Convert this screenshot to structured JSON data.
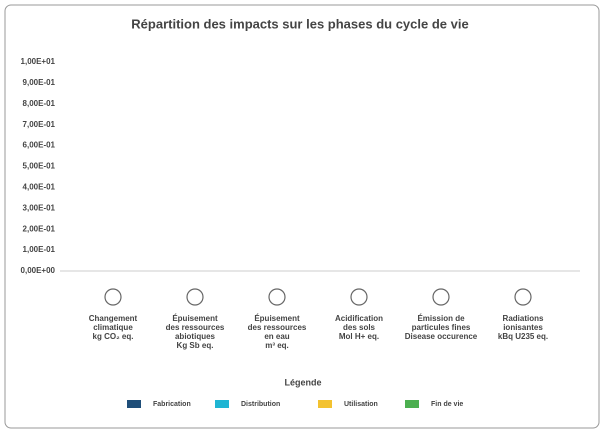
{
  "chart_data": {
    "type": "bar",
    "title": "Répartition des impacts sur les phases du cycle de vie",
    "categories": [
      "Changement\nclimatique\nkg CO₂ eq.",
      "Épuisement\ndes ressources\nabiotiques\nKg Sb eq.",
      "Épuisement\ndes ressources\nen eau\nm³ eq.",
      "Acidification\ndes sols\nMol H+ eq.",
      "Émission de\nparticules fines\nDisease occurence",
      "Radiations\nionisantes\nkBq U235 eq."
    ],
    "series": [
      {
        "name": "Fabrication",
        "color": "#1f4e79",
        "values": [
          0,
          0,
          0,
          0,
          0,
          0
        ]
      },
      {
        "name": "Distribution",
        "color": "#1fb5d3",
        "values": [
          0,
          0,
          0,
          0,
          0,
          0
        ]
      },
      {
        "name": "Utilisation",
        "color": "#f3c230",
        "values": [
          0,
          0,
          0,
          0,
          0,
          0
        ]
      },
      {
        "name": "Fin de vie",
        "color": "#4caf50",
        "values": [
          0,
          0,
          0,
          0,
          0,
          0
        ]
      }
    ],
    "ylim": [
      0,
      10
    ],
    "yticks": [
      {
        "value": 0,
        "label": "0,00E+00"
      },
      {
        "value": 0.1,
        "label": "1,00E-01"
      },
      {
        "value": 0.2,
        "label": "2,00E-01"
      },
      {
        "value": 0.3,
        "label": "3,00E-01"
      },
      {
        "value": 0.4,
        "label": "4,00E-01"
      },
      {
        "value": 0.5,
        "label": "5,00E-01"
      },
      {
        "value": 0.6,
        "label": "6,00E-01"
      },
      {
        "value": 0.7,
        "label": "7,00E-01"
      },
      {
        "value": 0.8,
        "label": "8,00E-01"
      },
      {
        "value": 0.9,
        "label": "9,00E-01"
      },
      {
        "value": 10,
        "label": "1,00E+01"
      }
    ],
    "legend_title": "Légende"
  }
}
